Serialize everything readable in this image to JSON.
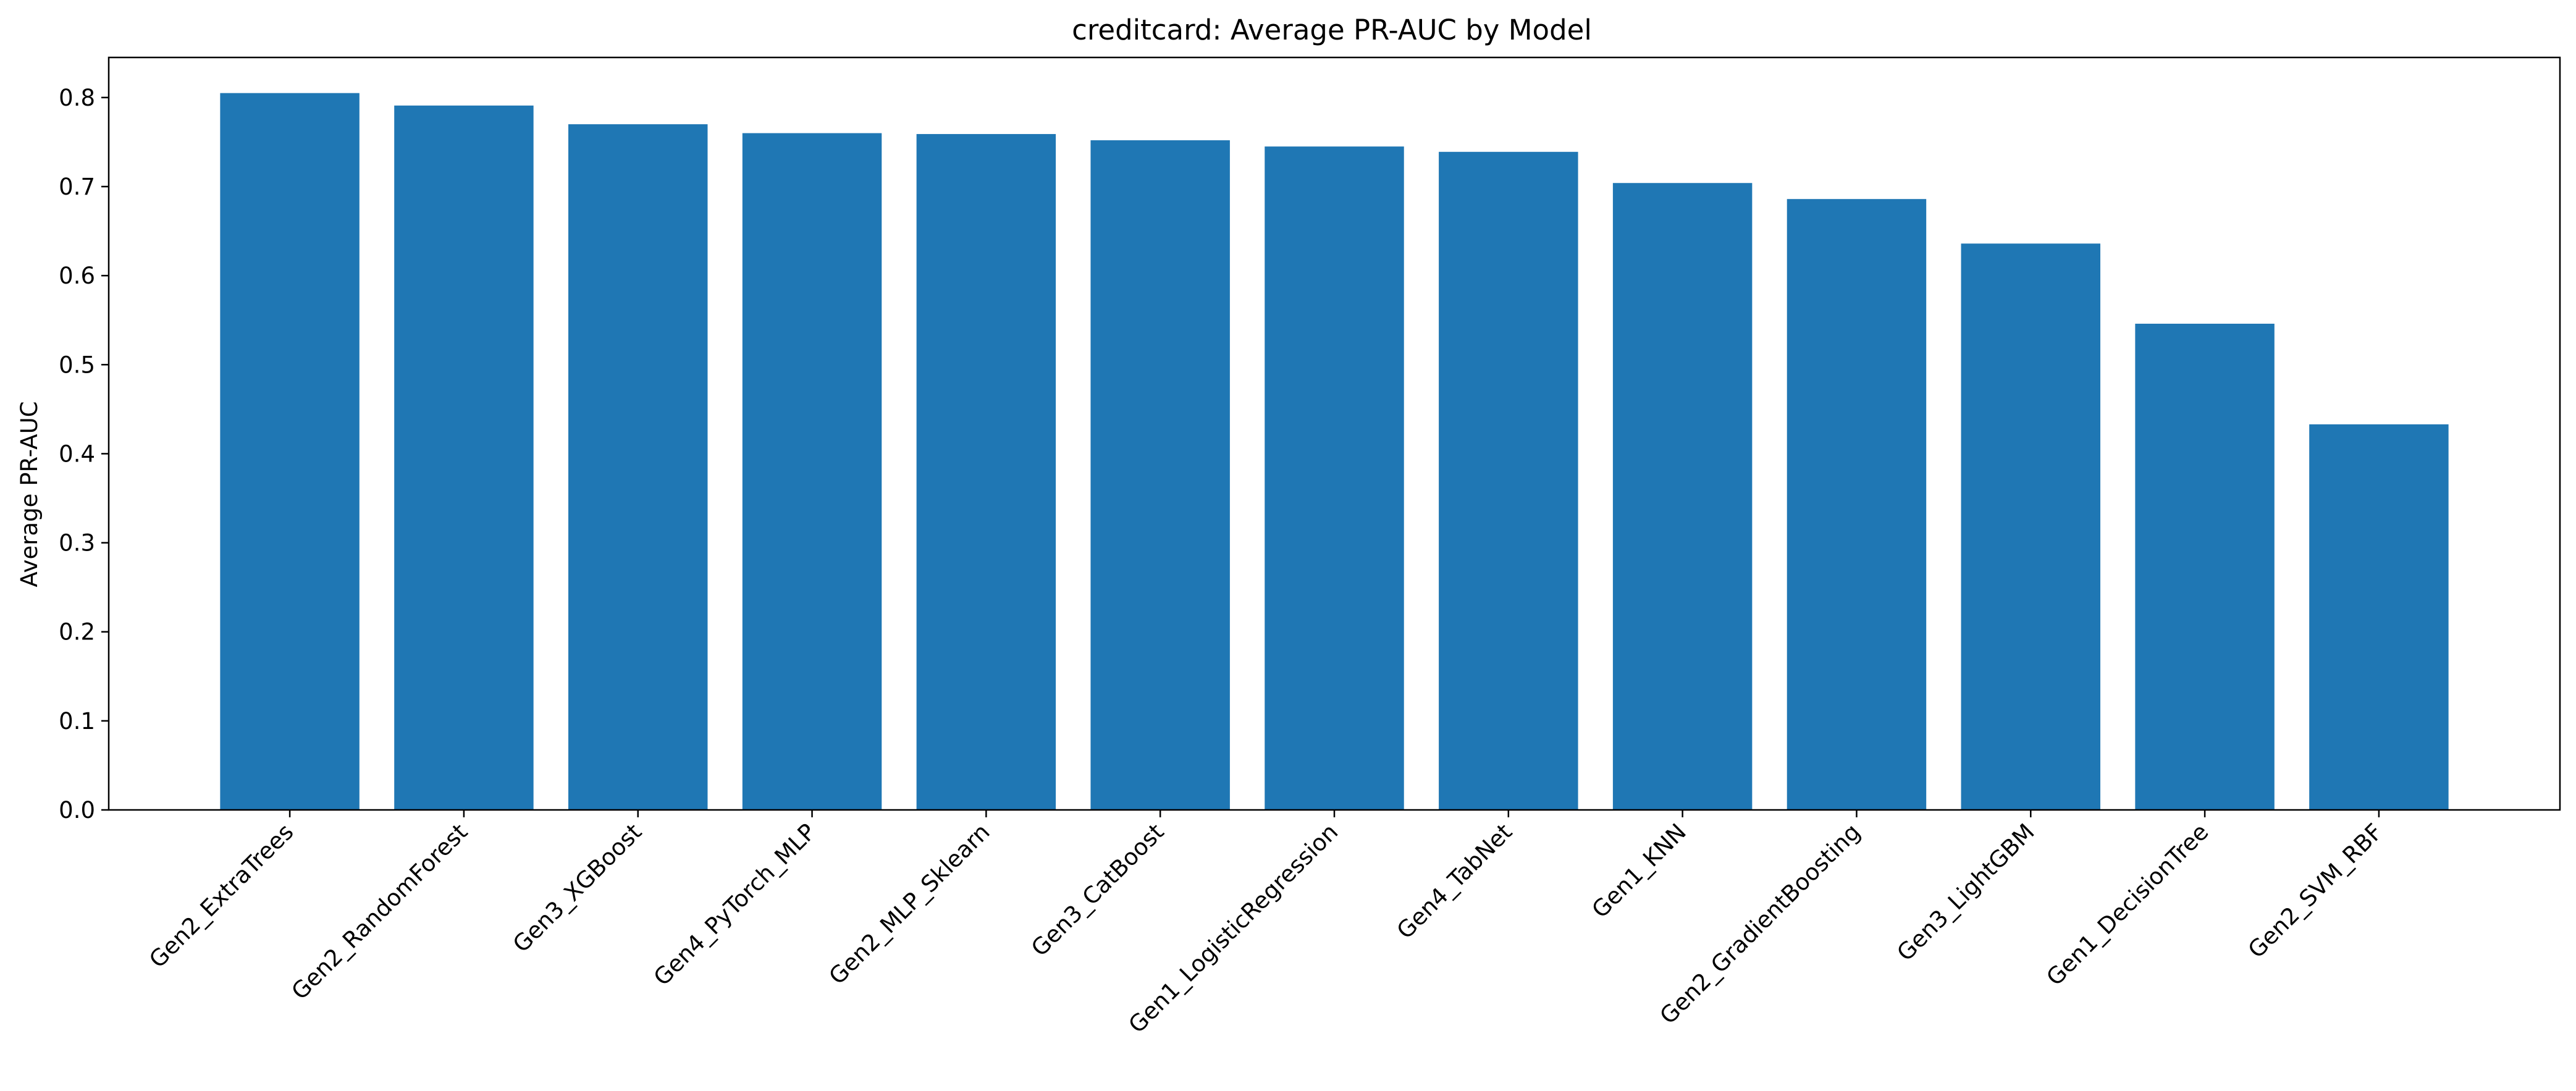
{
  "chart_data": {
    "type": "bar",
    "title": "creditcard: Average PR-AUC by Model",
    "xlabel": "",
    "ylabel": "Average PR-AUC",
    "ylim": [
      0,
      0.845
    ],
    "yticks": [
      "0.0",
      "0.1",
      "0.2",
      "0.3",
      "0.4",
      "0.5",
      "0.6",
      "0.7",
      "0.8"
    ],
    "grid": false,
    "legend": "none",
    "bar_color": "#1f77b4",
    "categories": [
      "Gen2_ExtraTrees",
      "Gen2_RandomForest",
      "Gen3_XGBoost",
      "Gen4_PyTorch_MLP",
      "Gen2_MLP_Sklearn",
      "Gen3_CatBoost",
      "Gen1_LogisticRegression",
      "Gen4_TabNet",
      "Gen1_KNN",
      "Gen2_GradientBoosting",
      "Gen3_LightGBM",
      "Gen1_DecisionTree",
      "Gen2_SVM_RBF"
    ],
    "values": [
      0.805,
      0.791,
      0.77,
      0.76,
      0.759,
      0.752,
      0.745,
      0.739,
      0.704,
      0.686,
      0.636,
      0.546,
      0.433
    ]
  }
}
